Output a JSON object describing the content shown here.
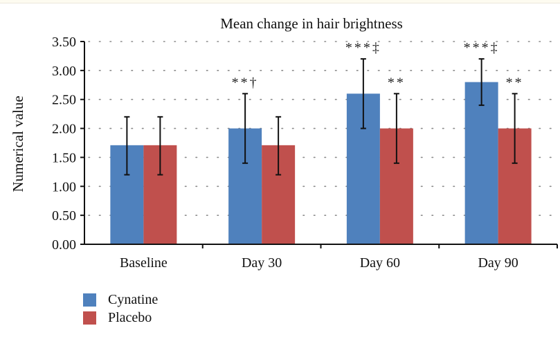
{
  "chart_data": {
    "type": "bar",
    "title": "Mean change in hair brightness",
    "xlabel": "",
    "ylabel": "Numerical value",
    "ylim": [
      0,
      3.5
    ],
    "yticks": [
      "0.00",
      "0.50",
      "1.00",
      "1.50",
      "2.00",
      "2.50",
      "3.00",
      "3.50"
    ],
    "ytick_values": [
      0,
      0.5,
      1.0,
      1.5,
      2.0,
      2.5,
      3.0,
      3.5
    ],
    "grid": "dotted horizontal",
    "categories": [
      "Baseline",
      "Day 30",
      "Day 60",
      "Day 90"
    ],
    "series": [
      {
        "name": "Cynatine",
        "color": "#4f81bd",
        "values": [
          1.71,
          2.0,
          2.6,
          2.8
        ],
        "error_low": [
          1.2,
          1.4,
          2.0,
          2.4
        ],
        "error_high": [
          2.2,
          2.6,
          3.2,
          3.2
        ],
        "annotations": [
          "",
          "**†",
          "***‡",
          "***‡"
        ]
      },
      {
        "name": "Placebo",
        "color": "#c0504d",
        "values": [
          1.71,
          1.71,
          2.0,
          2.0
        ],
        "error_low": [
          1.2,
          1.2,
          1.4,
          1.4
        ],
        "error_high": [
          2.2,
          2.2,
          2.6,
          2.6
        ],
        "annotations": [
          "",
          "",
          "**",
          "**"
        ]
      }
    ],
    "legend": "bottom-left"
  }
}
